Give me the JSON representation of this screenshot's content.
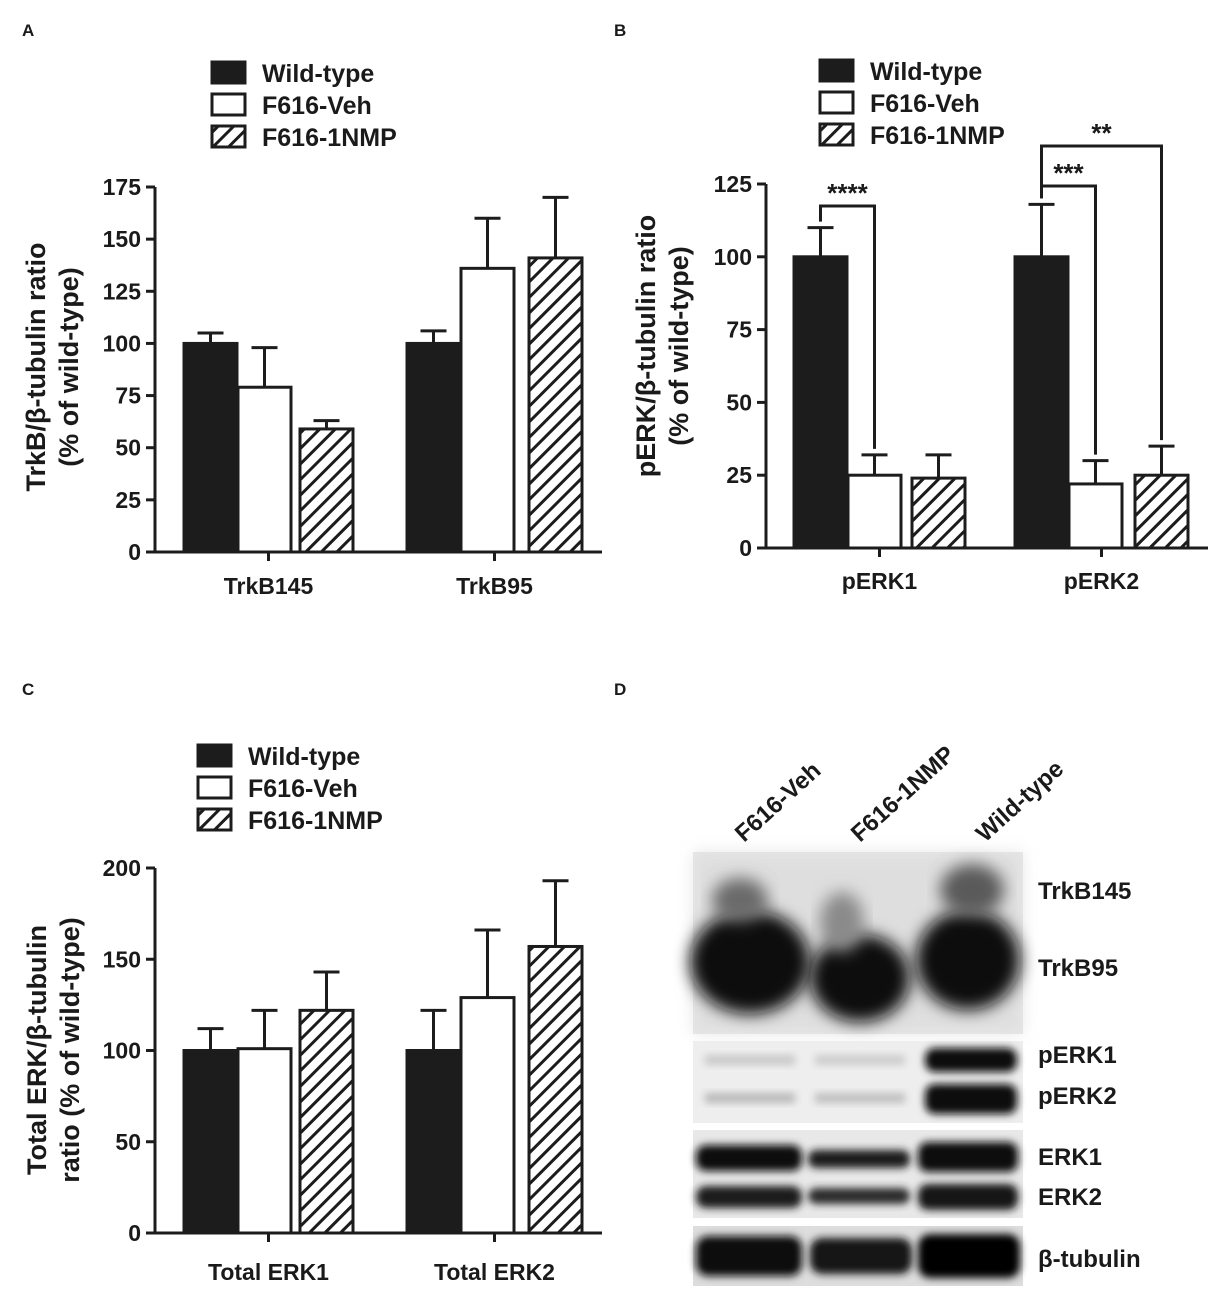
{
  "panels": [
    {
      "letter": "A",
      "chart_data": {
        "type": "bar",
        "title": "",
        "ylabel_lines": [
          "TrkB/β-tubulin ratio",
          "(% of wild-type)"
        ],
        "xlabel": "",
        "categories": [
          "TrkB145",
          "TrkB95"
        ],
        "ylim": [
          0,
          175
        ],
        "yticks": [
          0,
          25,
          50,
          75,
          100,
          125,
          150,
          175
        ],
        "series": [
          {
            "name": "Wild-type",
            "values": [
              100,
              100
            ],
            "errors": [
              5,
              6
            ]
          },
          {
            "name": "F616-Veh",
            "values": [
              79,
              136
            ],
            "errors": [
              19,
              24
            ]
          },
          {
            "name": "F616-1NMP",
            "values": [
              59,
              141
            ],
            "errors": [
              4,
              29
            ]
          }
        ],
        "significance": []
      }
    },
    {
      "letter": "B",
      "chart_data": {
        "type": "bar",
        "title": "",
        "ylabel_lines": [
          "pERK/β-tubulin ratio",
          "(% of wild-type)"
        ],
        "xlabel": "",
        "categories": [
          "pERK1",
          "pERK2"
        ],
        "ylim": [
          0,
          125
        ],
        "yticks": [
          0,
          25,
          50,
          75,
          100,
          125
        ],
        "series": [
          {
            "name": "Wild-type",
            "values": [
              100,
              100
            ],
            "errors": [
              10,
              18
            ]
          },
          {
            "name": "F616-Veh",
            "values": [
              25,
              22
            ],
            "errors": [
              7,
              8
            ]
          },
          {
            "name": "F616-1NMP",
            "values": [
              24,
              25
            ],
            "errors": [
              8,
              10
            ]
          }
        ],
        "significance": [
          {
            "category": 0,
            "from": 0,
            "to": 1,
            "label": "****"
          },
          {
            "category": 1,
            "from": 0,
            "to": 1,
            "label": "***"
          },
          {
            "category": 1,
            "from": 0,
            "to": 2,
            "label": "**"
          }
        ]
      }
    },
    {
      "letter": "C",
      "chart_data": {
        "type": "bar",
        "title": "",
        "ylabel_lines": [
          "Total ERK/β-tubulin",
          "ratio (% of wild-type)"
        ],
        "xlabel": "",
        "categories": [
          "Total ERK1",
          "Total ERK2"
        ],
        "ylim": [
          0,
          200
        ],
        "yticks": [
          0,
          50,
          100,
          150,
          200
        ],
        "series": [
          {
            "name": "Wild-type",
            "values": [
              100,
              100
            ],
            "errors": [
              12,
              22
            ]
          },
          {
            "name": "F616-Veh",
            "values": [
              101,
              129
            ],
            "errors": [
              21,
              37
            ]
          },
          {
            "name": "F616-1NMP",
            "values": [
              122,
              157
            ],
            "errors": [
              21,
              36
            ]
          }
        ],
        "significance": []
      }
    }
  ],
  "blot": {
    "letter": "D",
    "lanes": [
      "F616-Veh",
      "F616-1NMP",
      "Wild-type"
    ],
    "bands": [
      "TrkB145",
      "TrkB95",
      "pERK1",
      "pERK2",
      "ERK1",
      "ERK2",
      "β-tubulin"
    ]
  },
  "colors": {
    "fill_dark": "#1c1c1c",
    "stroke": "#1c1c1c",
    "blot_bg": "#f1f1f1",
    "band": "#0e0e0e"
  }
}
